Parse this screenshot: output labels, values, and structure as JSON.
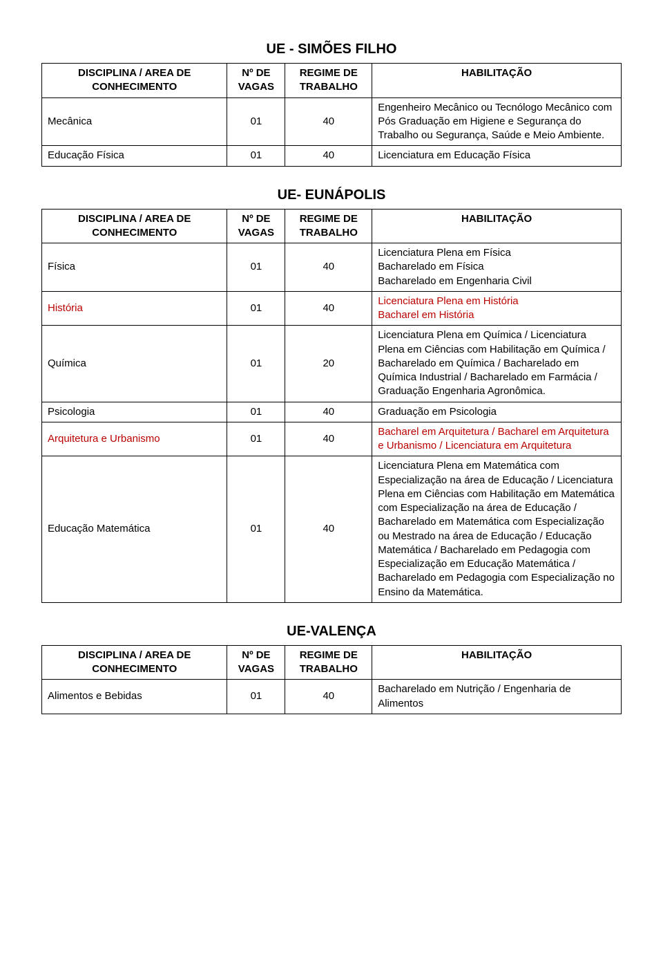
{
  "sections": [
    {
      "title": "UE - SIMÕES FILHO",
      "header": [
        "DISCIPLINA / AREA DE CONHECIMENTO",
        "Nº DE VAGAS",
        "REGIME DE TRABALHO",
        "HABILITAÇÃO"
      ],
      "rows": [
        {
          "discipline": "Mecânica",
          "vagas": "01",
          "regime": "40",
          "hab": "Engenheiro Mecânico ou Tecnólogo Mecânico com Pós Graduação em Higiene e Segurança do Trabalho ou Segurança, Saúde e Meio Ambiente.",
          "discipline_red": false,
          "hab_red": false
        },
        {
          "discipline": "Educação Física",
          "vagas": "01",
          "regime": "40",
          "hab": "Licenciatura em Educação Física",
          "discipline_red": false,
          "hab_red": false
        }
      ]
    },
    {
      "title": "UE- EUNÁPOLIS",
      "header": [
        "DISCIPLINA / AREA DE CONHECIMENTO",
        "Nº DE VAGAS",
        "REGIME DE TRABALHO",
        "HABILITAÇÃO"
      ],
      "rows": [
        {
          "discipline": "Física",
          "vagas": "01",
          "regime": "40",
          "hab": "Licenciatura Plena em Física\nBacharelado em Física\nBacharelado em Engenharia Civil",
          "discipline_red": false,
          "hab_red": false
        },
        {
          "discipline": "História",
          "vagas": "01",
          "regime": "40",
          "hab": "Licenciatura Plena em História\nBacharel em História",
          "discipline_red": true,
          "hab_red": true
        },
        {
          "discipline": "Química",
          "vagas": "01",
          "regime": "20",
          "hab": "Licenciatura Plena em Química / Licenciatura Plena em Ciências com Habilitação em Química / Bacharelado em Química / Bacharelado em Química Industrial / Bacharelado em Farmácia / Graduação Engenharia Agronômica.",
          "discipline_red": false,
          "hab_red": false
        },
        {
          "discipline": "Psicologia",
          "vagas": "01",
          "regime": "40",
          "hab": "Graduação em Psicologia",
          "discipline_red": false,
          "hab_red": false
        },
        {
          "discipline": "Arquitetura e Urbanismo",
          "vagas": "01",
          "regime": "40",
          "hab": "Bacharel em Arquitetura / Bacharel em Arquitetura e Urbanismo / Licenciatura em Arquitetura",
          "discipline_red": true,
          "hab_red": true
        },
        {
          "discipline": "Educação Matemática",
          "vagas": "01",
          "regime": "40",
          "hab": " Licenciatura Plena em Matemática com Especialização na área de Educação / Licenciatura Plena em Ciências com Habilitação em Matemática com Especialização na área de Educação / Bacharelado em Matemática com Especialização ou Mestrado na área de Educação / Educação Matemática / Bacharelado em Pedagogia com Especialização em Educação Matemática / Bacharelado em Pedagogia com Especialização no Ensino da Matemática.",
          "discipline_red": false,
          "hab_red": false
        }
      ]
    },
    {
      "title": "UE-VALENÇA",
      "header": [
        "DISCIPLINA / AREA DE CONHECIMENTO",
        "Nº DE VAGAS",
        "REGIME DE TRABALHO",
        "HABILITAÇÃO"
      ],
      "rows": [
        {
          "discipline": "Alimentos e Bebidas",
          "vagas": "01",
          "regime": "40",
          "hab": "Bacharelado em Nutrição / Engenharia de Alimentos",
          "discipline_red": false,
          "hab_red": false
        }
      ]
    }
  ],
  "colors": {
    "text": "#000000",
    "red": "#bb0000",
    "border": "#000000",
    "background": "#ffffff"
  },
  "typography": {
    "font_family": "Arial, sans-serif",
    "title_fontsize": 20,
    "cell_fontsize": 15
  }
}
